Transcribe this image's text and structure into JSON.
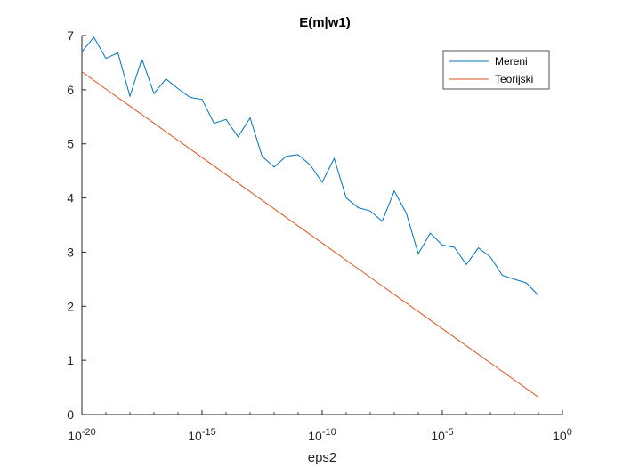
{
  "chart_data": {
    "type": "line",
    "title": "E(m|w1)",
    "xlabel": "eps2",
    "ylabel": "",
    "xscale": "log",
    "xlim": [
      1e-20,
      1
    ],
    "ylim": [
      0,
      7
    ],
    "x_ticks": [
      {
        "value": 1e-20,
        "base": "10",
        "exp": "-20"
      },
      {
        "value": 1e-15,
        "base": "10",
        "exp": "-15"
      },
      {
        "value": 1e-10,
        "base": "10",
        "exp": "-10"
      },
      {
        "value": 1e-05,
        "base": "10",
        "exp": "-5"
      },
      {
        "value": 1,
        "base": "10",
        "exp": "0"
      }
    ],
    "y_ticks": [
      "0",
      "1",
      "2",
      "3",
      "4",
      "5",
      "6",
      "7"
    ],
    "grid": false,
    "legend_position": "top-right",
    "series": [
      {
        "name": "Mereni",
        "color": "#0072BD",
        "x": [
          1e-20,
          3.16e-20,
          1e-19,
          3.16e-19,
          1e-18,
          3.16e-18,
          1e-17,
          3.16e-17,
          1e-16,
          3.16e-16,
          1e-15,
          3.16e-15,
          1e-14,
          3.16e-14,
          1e-13,
          3.16e-13,
          1e-12,
          3.16e-12,
          1e-11,
          3.16e-11,
          1e-10,
          3.16e-10,
          1e-09,
          3.16e-09,
          1e-08,
          3.16e-08,
          1e-07,
          3.16e-07,
          1e-06,
          3.16e-06,
          1e-05,
          3.16e-05,
          0.0001,
          0.000316,
          0.001,
          0.00316,
          0.01,
          0.0316,
          0.1
        ],
        "y": [
          6.7,
          6.97,
          6.58,
          6.68,
          5.88,
          6.57,
          5.93,
          6.2,
          6.02,
          5.86,
          5.82,
          5.38,
          5.45,
          5.13,
          5.48,
          4.77,
          4.57,
          4.77,
          4.8,
          4.61,
          4.29,
          4.73,
          4.0,
          3.82,
          3.76,
          3.57,
          4.13,
          3.72,
          2.97,
          3.35,
          3.13,
          3.09,
          2.77,
          3.08,
          2.91,
          2.57,
          2.5,
          2.43,
          2.2
        ]
      },
      {
        "name": "Teorijski",
        "color": "#D95319",
        "x": [
          1e-20,
          0.1
        ],
        "y": [
          6.33,
          0.32
        ]
      }
    ]
  }
}
